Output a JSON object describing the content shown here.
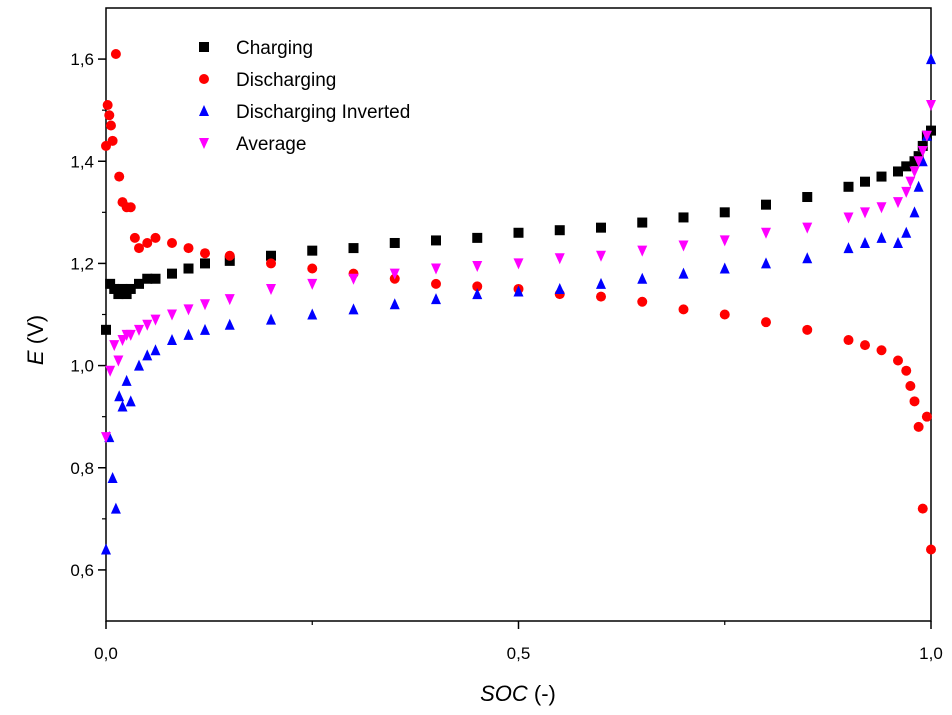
{
  "chart_data": {
    "type": "scatter",
    "xlabel": {
      "italic": "SOC",
      "rest": " (-)"
    },
    "ylabel": {
      "italic": "E",
      "rest": " (V)"
    },
    "xlim": [
      0.0,
      1.0
    ],
    "ylim": [
      0.5,
      1.7
    ],
    "xticks": [
      {
        "value": 0.0,
        "label": "0,0"
      },
      {
        "value": 0.5,
        "label": "0,5"
      },
      {
        "value": 1.0,
        "label": "1,0"
      }
    ],
    "xminor": [
      0.25,
      0.75
    ],
    "yticks": [
      {
        "value": 0.6,
        "label": "0,6"
      },
      {
        "value": 0.8,
        "label": "0,8"
      },
      {
        "value": 1.0,
        "label": "1,0"
      },
      {
        "value": 1.2,
        "label": "1,2"
      },
      {
        "value": 1.4,
        "label": "1,4"
      },
      {
        "value": 1.6,
        "label": "1,6"
      }
    ],
    "yminor": [
      0.7,
      0.9,
      1.1,
      1.3,
      1.5
    ],
    "grid": false,
    "legend_position": "top-left",
    "series": [
      {
        "name": "Charging",
        "marker": "square",
        "color": "#000000",
        "x": [
          0.0,
          0.005,
          0.01,
          0.015,
          0.02,
          0.025,
          0.03,
          0.04,
          0.05,
          0.06,
          0.08,
          0.1,
          0.12,
          0.15,
          0.2,
          0.25,
          0.3,
          0.35,
          0.4,
          0.45,
          0.5,
          0.55,
          0.6,
          0.65,
          0.7,
          0.75,
          0.8,
          0.85,
          0.9,
          0.92,
          0.94,
          0.96,
          0.97,
          0.98,
          0.985,
          0.99,
          0.995,
          1.0
        ],
        "y": [
          1.07,
          1.16,
          1.15,
          1.14,
          1.15,
          1.14,
          1.15,
          1.16,
          1.17,
          1.17,
          1.18,
          1.19,
          1.2,
          1.205,
          1.215,
          1.225,
          1.23,
          1.24,
          1.245,
          1.25,
          1.26,
          1.265,
          1.27,
          1.28,
          1.29,
          1.3,
          1.315,
          1.33,
          1.35,
          1.36,
          1.37,
          1.38,
          1.39,
          1.4,
          1.41,
          1.43,
          1.45,
          1.46
        ]
      },
      {
        "name": "Discharging",
        "marker": "circle",
        "color": "#ff0000",
        "x": [
          0.0,
          0.002,
          0.004,
          0.006,
          0.008,
          0.012,
          0.016,
          0.02,
          0.025,
          0.03,
          0.035,
          0.04,
          0.05,
          0.06,
          0.08,
          0.1,
          0.12,
          0.15,
          0.2,
          0.25,
          0.3,
          0.35,
          0.4,
          0.45,
          0.5,
          0.55,
          0.6,
          0.65,
          0.7,
          0.75,
          0.8,
          0.85,
          0.9,
          0.92,
          0.94,
          0.96,
          0.97,
          0.975,
          0.98,
          0.985,
          0.99,
          0.995,
          1.0
        ],
        "y": [
          1.43,
          1.51,
          1.49,
          1.47,
          1.44,
          1.61,
          1.37,
          1.32,
          1.31,
          1.31,
          1.25,
          1.23,
          1.24,
          1.25,
          1.24,
          1.23,
          1.22,
          1.215,
          1.2,
          1.19,
          1.18,
          1.17,
          1.16,
          1.155,
          1.15,
          1.14,
          1.135,
          1.125,
          1.11,
          1.1,
          1.085,
          1.07,
          1.05,
          1.04,
          1.03,
          1.01,
          0.99,
          0.96,
          0.93,
          0.88,
          0.72,
          0.9,
          0.64
        ]
      },
      {
        "name": "Discharging Inverted",
        "marker": "triangle-up",
        "color": "#0000ff",
        "x": [
          0.0,
          0.004,
          0.008,
          0.012,
          0.016,
          0.02,
          0.025,
          0.03,
          0.04,
          0.05,
          0.06,
          0.08,
          0.1,
          0.12,
          0.15,
          0.2,
          0.25,
          0.3,
          0.35,
          0.4,
          0.45,
          0.5,
          0.55,
          0.6,
          0.65,
          0.7,
          0.75,
          0.8,
          0.85,
          0.9,
          0.92,
          0.94,
          0.96,
          0.97,
          0.98,
          0.985,
          0.99,
          0.995,
          1.0
        ],
        "y": [
          0.64,
          0.86,
          0.78,
          0.72,
          0.94,
          0.92,
          0.97,
          0.93,
          1.0,
          1.02,
          1.03,
          1.05,
          1.06,
          1.07,
          1.08,
          1.09,
          1.1,
          1.11,
          1.12,
          1.13,
          1.14,
          1.145,
          1.15,
          1.16,
          1.17,
          1.18,
          1.19,
          1.2,
          1.21,
          1.23,
          1.24,
          1.25,
          1.24,
          1.26,
          1.3,
          1.35,
          1.4,
          1.45,
          1.6
        ]
      },
      {
        "name": "Average",
        "marker": "triangle-down",
        "color": "#ff00ff",
        "x": [
          0.0,
          0.005,
          0.01,
          0.015,
          0.02,
          0.025,
          0.03,
          0.04,
          0.05,
          0.06,
          0.08,
          0.1,
          0.12,
          0.15,
          0.2,
          0.25,
          0.3,
          0.35,
          0.4,
          0.45,
          0.5,
          0.55,
          0.6,
          0.65,
          0.7,
          0.75,
          0.8,
          0.85,
          0.9,
          0.92,
          0.94,
          0.96,
          0.97,
          0.975,
          0.98,
          0.985,
          0.99,
          0.995,
          1.0
        ],
        "y": [
          0.86,
          0.99,
          1.04,
          1.01,
          1.05,
          1.06,
          1.06,
          1.07,
          1.08,
          1.09,
          1.1,
          1.11,
          1.12,
          1.13,
          1.15,
          1.16,
          1.17,
          1.18,
          1.19,
          1.195,
          1.2,
          1.21,
          1.215,
          1.225,
          1.235,
          1.245,
          1.26,
          1.27,
          1.29,
          1.3,
          1.31,
          1.32,
          1.34,
          1.36,
          1.38,
          1.4,
          1.42,
          1.45,
          1.51
        ]
      }
    ]
  }
}
